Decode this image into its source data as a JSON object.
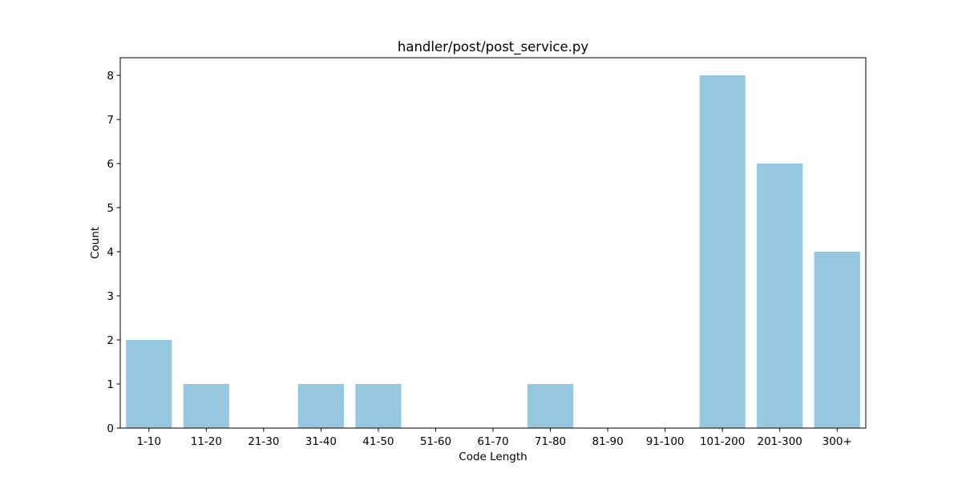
{
  "chart_data": {
    "type": "bar",
    "title": "handler/post/post_service.py",
    "xlabel": "Code Length",
    "ylabel": "Count",
    "categories": [
      "1-10",
      "11-20",
      "21-30",
      "31-40",
      "41-50",
      "51-60",
      "61-70",
      "71-80",
      "81-90",
      "91-100",
      "101-200",
      "201-300",
      "300+"
    ],
    "values": [
      2,
      1,
      0,
      1,
      1,
      0,
      0,
      1,
      0,
      0,
      8,
      6,
      4
    ],
    "yticks": [
      "0",
      "1",
      "2",
      "3",
      "4",
      "5",
      "6",
      "7",
      "8"
    ],
    "ylim": [
      0,
      8.4
    ],
    "grid": false,
    "legend": "none",
    "bar_color": "#96c9df",
    "axis_color": "#000000"
  }
}
